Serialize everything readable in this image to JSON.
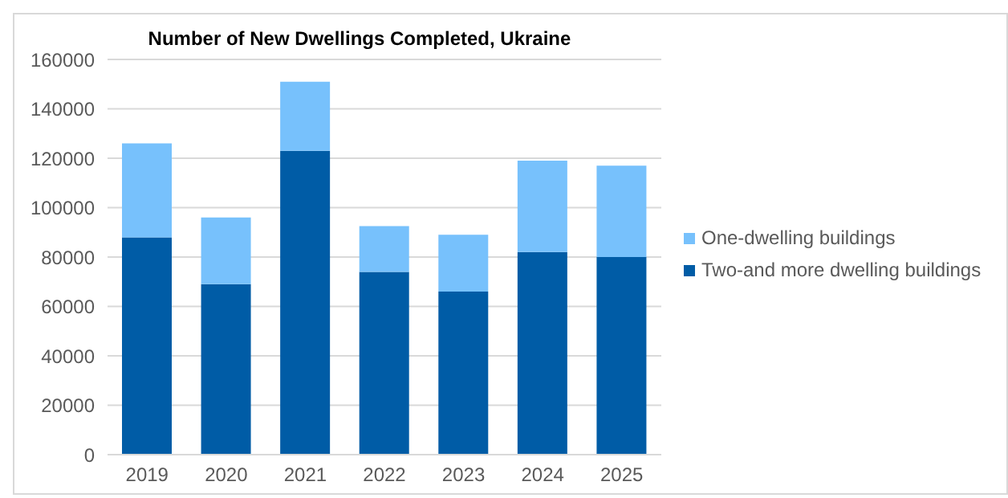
{
  "chart_data": {
    "type": "bar",
    "title": "Number of New Dwellings Completed, Ukraine",
    "categories": [
      "2019",
      "2020",
      "2021",
      "2022",
      "2023",
      "2024",
      "2025"
    ],
    "stacked": true,
    "series": [
      {
        "name": "Two-and more dwelling buildings",
        "color": "#005ca6",
        "values": [
          88000,
          69000,
          123000,
          74000,
          66000,
          82000,
          80000
        ]
      },
      {
        "name": "One-dwelling buildings",
        "color": "#77c1fc",
        "values": [
          38000,
          27000,
          28000,
          18500,
          23000,
          37000,
          37000
        ]
      }
    ],
    "ylim": [
      0,
      160000
    ],
    "yticks": [
      0,
      20000,
      40000,
      60000,
      80000,
      100000,
      120000,
      140000,
      160000
    ],
    "grid": "y",
    "legend": "right"
  }
}
